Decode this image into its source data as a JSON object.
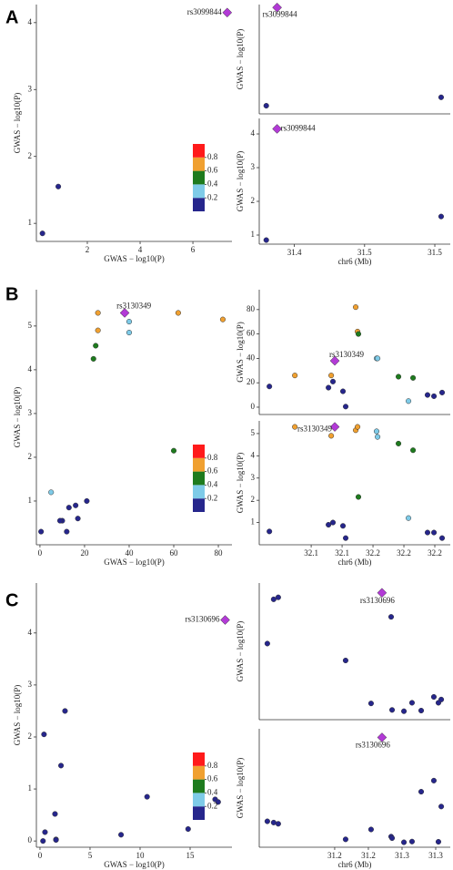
{
  "chart_data": [
    {
      "type": "scatter",
      "panel_label": "A",
      "xlabel": "GWAS − log10(P)",
      "ylabel": "GWAS − log10(P)",
      "x": [
        0.3,
        0.9,
        7.3
      ],
      "y": [
        0.85,
        1.55,
        4.15
      ],
      "point_colors": [
        "#26268c",
        "#26268c",
        "#b23ad6"
      ],
      "markers": [
        "circle",
        "circle",
        "diamond"
      ],
      "lead_label": "rs3099844",
      "xlim": [
        0.07,
        7.48
      ],
      "ylim": [
        0.73,
        4.27
      ],
      "xticks": [
        2,
        4,
        6
      ],
      "yticks": [
        1,
        2,
        3,
        4
      ],
      "colorbar": {
        "colors": [
          "#26268c",
          "#7ecbe8",
          "#1e7b1e",
          "#f0a030",
          "#ff1a1a"
        ],
        "ticks": [
          0.2,
          0.4,
          0.6,
          0.8
        ]
      }
    },
    {
      "type": "scatter",
      "ylabel": "GWAS − log10(P)",
      "x": [
        31.38,
        31.5045,
        31.3877
      ],
      "y": [
        0.3,
        0.9,
        7.3
      ],
      "point_colors": [
        "#26268c",
        "#26268c",
        "#b23ad6"
      ],
      "markers": [
        "circle",
        "circle",
        "diamond"
      ],
      "lead_label": "rs3099844",
      "xlim": [
        31.375,
        31.511
      ],
      "ylim": [
        -0.28,
        7.51
      ]
    },
    {
      "type": "scatter",
      "xlabel": "chr6 (Mb)",
      "ylabel": "GWAS − log10(P)",
      "x": [
        31.38,
        31.5045,
        31.3877
      ],
      "y": [
        0.85,
        1.55,
        4.15
      ],
      "point_colors": [
        "#26268c",
        "#26268c",
        "#b23ad6"
      ],
      "markers": [
        "circle",
        "circle",
        "diamond"
      ],
      "lead_label": "rs3099844",
      "xlim": [
        31.375,
        31.511
      ],
      "ylim": [
        0.73,
        4.46
      ],
      "xticks": [
        31.4,
        {
          "value": 31.45,
          "label": "31.5"
        },
        31.5
      ],
      "yticks": [
        1,
        2,
        3,
        4
      ]
    },
    {
      "type": "scatter",
      "panel_label": "B",
      "xlabel": "GWAS − log10(P)",
      "ylabel": "GWAS − log10(P)",
      "x": [
        17,
        26,
        16,
        26,
        38,
        21,
        13,
        0.5,
        82,
        62,
        60,
        40,
        40,
        25,
        5,
        24,
        10,
        9,
        12
      ],
      "y": [
        0.6,
        5.3,
        0.9,
        4.9,
        5.3,
        1.0,
        0.85,
        0.3,
        5.15,
        5.3,
        2.15,
        5.1,
        4.85,
        4.55,
        1.2,
        4.25,
        0.55,
        0.55,
        0.3
      ],
      "point_colors": [
        "#26268c",
        "#f0a030",
        "#26268c",
        "#f0a030",
        "#b23ad6",
        "#26268c",
        "#26268c",
        "#26268c",
        "#f0a030",
        "#f0a030",
        "#1e7b1e",
        "#7ecbe8",
        "#7ecbe8",
        "#1e7b1e",
        "#7ecbe8",
        "#1e7b1e",
        "#26268c",
        "#26268c",
        "#26268c"
      ],
      "markers": [
        "circle",
        "circle",
        "circle",
        "circle",
        "diamond",
        "circle",
        "circle",
        "circle",
        "circle",
        "circle",
        "circle",
        "circle",
        "circle",
        "circle",
        "circle",
        "circle",
        "circle",
        "circle",
        "circle"
      ],
      "lead_label": "rs3130349",
      "xlim": [
        -1.6,
        86.1
      ],
      "ylim": [
        0,
        5.83
      ],
      "xticks": [
        0,
        20,
        40,
        60,
        80
      ],
      "yticks": [
        1,
        2,
        3,
        4,
        5
      ],
      "colorbar": {
        "colors": [
          "#26268c",
          "#7ecbe8",
          "#1e7b1e",
          "#f0a030",
          "#ff1a1a"
        ],
        "ticks": [
          0.2,
          0.4,
          0.6,
          0.8
        ]
      }
    },
    {
      "type": "scatter",
      "ylabel": "GWAS − log10(P)",
      "x": [
        32.0662,
        32.0868,
        32.114,
        32.1162,
        32.1191,
        32.1176,
        32.1257,
        32.1279,
        32.136,
        32.1375,
        32.1382,
        32.1529,
        32.1537,
        32.1706,
        32.1787,
        32.1824,
        32.1941,
        32.1993,
        32.2059
      ],
      "y": [
        17,
        26,
        16,
        26,
        38,
        21,
        13,
        0.5,
        82,
        62,
        60,
        40,
        40,
        25,
        5,
        24,
        10,
        9,
        12
      ],
      "point_colors": [
        "#26268c",
        "#f0a030",
        "#26268c",
        "#f0a030",
        "#b23ad6",
        "#26268c",
        "#26268c",
        "#26268c",
        "#f0a030",
        "#f0a030",
        "#1e7b1e",
        "#7ecbe8",
        "#7ecbe8",
        "#1e7b1e",
        "#7ecbe8",
        "#1e7b1e",
        "#26268c",
        "#26268c",
        "#26268c"
      ],
      "markers": [
        "circle",
        "circle",
        "circle",
        "circle",
        "diamond",
        "circle",
        "circle",
        "circle",
        "circle",
        "circle",
        "circle",
        "circle",
        "circle",
        "circle",
        "circle",
        "circle",
        "circle",
        "circle",
        "circle"
      ],
      "lead_label": "rs3130349",
      "xlim": [
        32.058,
        32.2125
      ],
      "ylim": [
        -6,
        96.3
      ],
      "yticks": [
        0,
        20,
        40,
        60,
        80
      ]
    },
    {
      "type": "scatter",
      "xlabel": "chr6 (Mb)",
      "ylabel": "GWAS − log10(P)",
      "x": [
        32.0662,
        32.0868,
        32.114,
        32.1162,
        32.1191,
        32.1176,
        32.1257,
        32.1279,
        32.136,
        32.1375,
        32.1382,
        32.1529,
        32.1537,
        32.1706,
        32.1787,
        32.1824,
        32.1941,
        32.1993,
        32.2059
      ],
      "y": [
        0.6,
        5.3,
        0.9,
        4.9,
        5.3,
        1.0,
        0.85,
        0.3,
        5.15,
        5.3,
        2.15,
        5.1,
        4.85,
        4.55,
        1.2,
        4.25,
        0.55,
        0.55,
        0.3
      ],
      "point_colors": [
        "#26268c",
        "#f0a030",
        "#26268c",
        "#f0a030",
        "#b23ad6",
        "#26268c",
        "#26268c",
        "#26268c",
        "#f0a030",
        "#f0a030",
        "#1e7b1e",
        "#7ecbe8",
        "#7ecbe8",
        "#1e7b1e",
        "#7ecbe8",
        "#1e7b1e",
        "#26268c",
        "#26268c",
        "#26268c"
      ],
      "markers": [
        "circle",
        "circle",
        "circle",
        "circle",
        "diamond",
        "circle",
        "circle",
        "circle",
        "circle",
        "circle",
        "circle",
        "circle",
        "circle",
        "circle",
        "circle",
        "circle",
        "circle",
        "circle",
        "circle"
      ],
      "lead_label": "rs3130349",
      "xlim": [
        32.058,
        32.2125
      ],
      "ylim": [
        0,
        5.57
      ],
      "xticks": [
        32.1,
        {
          "value": 32.125,
          "label": "32.1"
        },
        {
          "value": 32.15,
          "label": "32.2"
        },
        {
          "value": 32.175,
          "label": "32.2"
        },
        32.2
      ],
      "yticks": [
        1,
        2,
        3,
        4,
        5
      ]
    },
    {
      "type": "scatter",
      "panel_label": "C",
      "xlabel": "GWAS − log10(P)",
      "ylabel": "GWAS − log10(P)",
      "x": [
        10.7,
        17.5,
        17.8,
        8.1,
        1.5,
        14.8,
        0.5,
        0.3,
        1.6,
        0.4,
        2.5,
        1.6,
        2.1,
        18.5
      ],
      "y": [
        0.85,
        0.8,
        0.75,
        0.12,
        0.52,
        0.23,
        0.17,
        0,
        0.03,
        2.05,
        2.5,
        0.02,
        1.45,
        4.25
      ],
      "point_colors": [
        "#26268c",
        "#26268c",
        "#26268c",
        "#26268c",
        "#26268c",
        "#26268c",
        "#26268c",
        "#26268c",
        "#26268c",
        "#26268c",
        "#26268c",
        "#26268c",
        "#26268c",
        "#b23ad6"
      ],
      "markers": [
        "circle",
        "circle",
        "circle",
        "circle",
        "circle",
        "circle",
        "circle",
        "circle",
        "circle",
        "circle",
        "circle",
        "circle",
        "circle",
        "diamond"
      ],
      "lead_label": "rs3130696",
      "xlim": [
        -0.36,
        19.18
      ],
      "ylim": [
        -0.12,
        4.96
      ],
      "xticks": [
        0,
        5,
        10,
        15
      ],
      "yticks": [
        0,
        1,
        2,
        3,
        4
      ],
      "colorbar": {
        "colors": [
          "#26268c",
          "#7ecbe8",
          "#1e7b1e",
          "#f0a030",
          "#ff1a1a"
        ],
        "ticks": [
          0.2,
          0.4,
          0.6,
          0.8
        ]
      }
    },
    {
      "type": "scatter",
      "ylabel": "GWAS − log10(P)",
      "x": [
        31.15,
        31.1547,
        31.1581,
        31.2081,
        31.227,
        31.2419,
        31.2426,
        31.2514,
        31.2574,
        31.2642,
        31.2736,
        31.277,
        31.2791,
        31.2351
      ],
      "y": [
        10.7,
        17.5,
        17.8,
        8.1,
        1.5,
        14.8,
        0.5,
        0.3,
        1.6,
        0.4,
        2.5,
        1.6,
        2.1,
        18.5
      ],
      "point_colors": [
        "#26268c",
        "#26268c",
        "#26268c",
        "#26268c",
        "#26268c",
        "#26268c",
        "#26268c",
        "#26268c",
        "#26268c",
        "#26268c",
        "#26268c",
        "#26268c",
        "#26268c",
        "#b23ad6"
      ],
      "markers": [
        "circle",
        "circle",
        "circle",
        "circle",
        "circle",
        "circle",
        "circle",
        "circle",
        "circle",
        "circle",
        "circle",
        "circle",
        "circle",
        "diamond"
      ],
      "lead_label": "rs3130696",
      "xlim": [
        31.144,
        31.2858
      ],
      "ylim": [
        -1,
        20
      ]
    },
    {
      "type": "scatter",
      "xlabel": "chr6 (Mb)",
      "ylabel": "GWAS − log10(P)",
      "x": [
        31.15,
        31.1547,
        31.1581,
        31.2081,
        31.227,
        31.2419,
        31.2426,
        31.2514,
        31.2574,
        31.2642,
        31.2736,
        31.277,
        31.2791,
        31.2351
      ],
      "y": [
        0.85,
        0.8,
        0.75,
        0.12,
        0.52,
        0.23,
        0.17,
        0,
        0.03,
        2.05,
        2.5,
        0.02,
        1.45,
        4.25
      ],
      "point_colors": [
        "#26268c",
        "#26268c",
        "#26268c",
        "#26268c",
        "#26268c",
        "#26268c",
        "#26268c",
        "#26268c",
        "#26268c",
        "#26268c",
        "#26268c",
        "#26268c",
        "#26268c",
        "#b23ad6"
      ],
      "markers": [
        "circle",
        "circle",
        "circle",
        "circle",
        "circle",
        "circle",
        "circle",
        "circle",
        "circle",
        "circle",
        "circle",
        "circle",
        "circle",
        "diamond"
      ],
      "lead_label": "rs3130696",
      "xlim": [
        31.144,
        31.2858
      ],
      "ylim": [
        -0.2,
        4.6
      ],
      "xticks": [
        {
          "value": 31.2,
          "label": "31.2"
        },
        {
          "value": 31.225,
          "label": "31.2"
        },
        {
          "value": 31.25,
          "label": "31.3"
        },
        {
          "value": 31.275,
          "label": "31.3"
        }
      ]
    }
  ]
}
